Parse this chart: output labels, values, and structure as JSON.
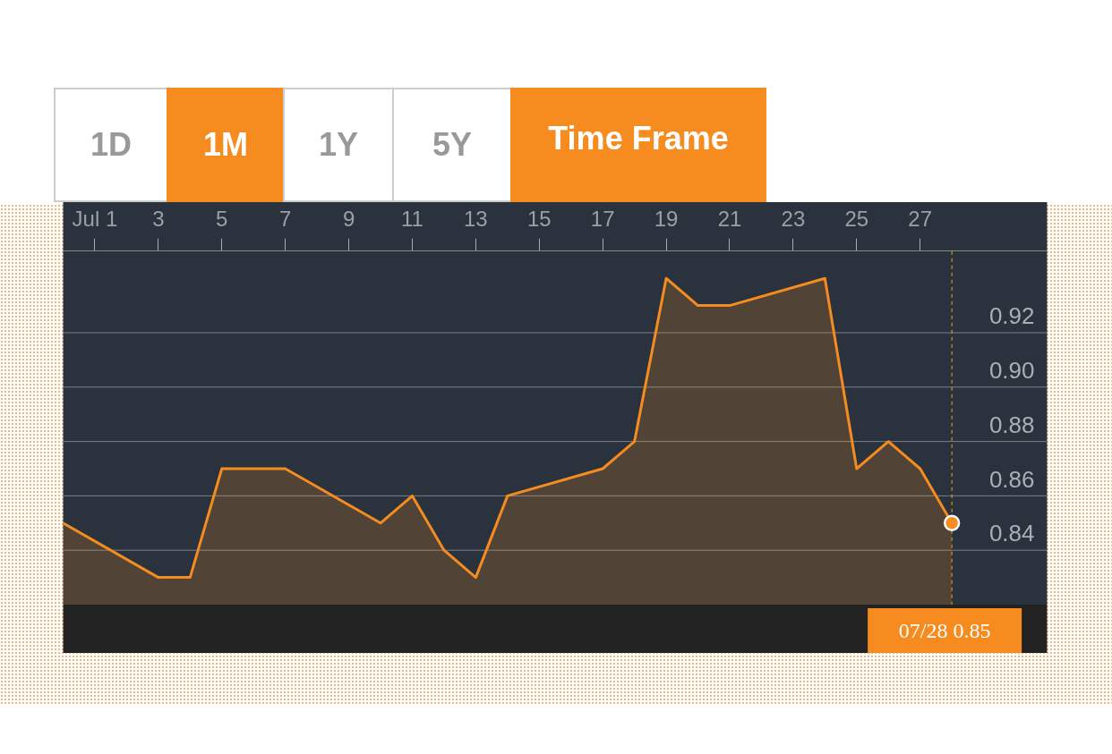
{
  "chart_data": {
    "type": "area",
    "x": [
      "--06-30",
      "--07-03",
      "--07-04",
      "--07-05",
      "--07-07",
      "--07-10",
      "--07-11",
      "--07-12",
      "--07-13",
      "--07-14",
      "--07-17",
      "--07-18",
      "--07-19",
      "--07-20",
      "--07-21",
      "--07-24",
      "--07-25",
      "--07-26",
      "--07-27",
      "--07-28"
    ],
    "series": [
      {
        "color": "#f68b1f",
        "values": [
          0.85,
          0.83,
          0.83,
          0.87,
          0.87,
          0.85,
          0.86,
          0.84,
          0.83,
          0.86,
          0.87,
          0.88,
          0.94,
          0.93,
          0.93,
          0.94,
          0.87,
          0.88,
          0.87,
          0.85
        ]
      }
    ],
    "xlim": [
      "--06-30",
      "--07-31"
    ],
    "xticks": [
      {
        "value": "--07-01",
        "label": "Jul 1"
      },
      {
        "value": "--07-03",
        "label": "3"
      },
      {
        "value": "--07-05",
        "label": "5"
      },
      {
        "value": "--07-07",
        "label": "7"
      },
      {
        "value": "--07-09",
        "label": "9"
      },
      {
        "value": "--07-11",
        "label": "11"
      },
      {
        "value": "--07-13",
        "label": "13"
      },
      {
        "value": "--07-15",
        "label": "15"
      },
      {
        "value": "--07-17",
        "label": "17"
      },
      {
        "value": "--07-19",
        "label": "19"
      },
      {
        "value": "--07-21",
        "label": "21"
      },
      {
        "value": "--07-23",
        "label": "23"
      },
      {
        "value": "--07-25",
        "label": "25"
      },
      {
        "value": "--07-27",
        "label": "27"
      }
    ],
    "ylim": [
      0.82,
      0.95
    ],
    "yticks": [
      {
        "value": 0.84,
        "label": "0.84"
      },
      {
        "value": 0.86,
        "label": "0.86"
      },
      {
        "value": 0.88,
        "label": "0.88"
      },
      {
        "value": 0.9,
        "label": "0.90"
      },
      {
        "value": 0.92,
        "label": "0.92"
      }
    ],
    "grid": "y",
    "legend": false,
    "marker": "none",
    "ref_lines": [
      {
        "axis": "x",
        "value": "--07-28",
        "color": "#f6a623",
        "line_style": "dashed"
      }
    ],
    "annotations": [
      "1D",
      "1M",
      "1Y",
      "5Y",
      "Time Frame",
      "07/28 0.85"
    ]
  }
}
